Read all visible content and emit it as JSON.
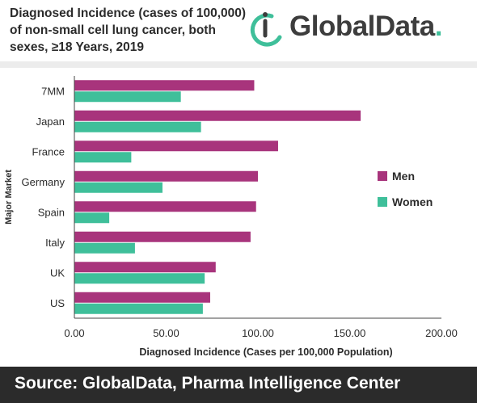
{
  "header": {
    "title_lines": [
      "Diagnosed Incidence (cases of 100,000)",
      "of non-small cell lung cancer, both",
      "sexes, ≥18 Years, 2019"
    ],
    "logo_text": "GlobalData",
    "logo_dot": "."
  },
  "footer": {
    "source_text": "Source: GlobalData, Pharma Intelligence Center"
  },
  "colors": {
    "men": "#a8347c",
    "women": "#3fbf9a",
    "axis": "#444444",
    "text": "#2b2b2b",
    "footer_bg": "#2b2b2b"
  },
  "chart_data": {
    "type": "bar",
    "orientation": "horizontal",
    "categories": [
      "7MM",
      "Japan",
      "France",
      "Germany",
      "Spain",
      "Italy",
      "UK",
      "US"
    ],
    "series": [
      {
        "name": "Men",
        "values": [
          98,
          156,
          111,
          100,
          99,
          96,
          77,
          74
        ]
      },
      {
        "name": "Women",
        "values": [
          58,
          69,
          31,
          48,
          19,
          33,
          71,
          70
        ]
      }
    ],
    "xlabel": "Diagnosed Incidence (Cases per 100,000 Population)",
    "ylabel": "Major Market",
    "xlim": [
      0,
      200
    ],
    "xticks": [
      "0.00",
      "50.00",
      "100.00",
      "150.00",
      "200.00"
    ],
    "grid": false,
    "legend_position": "right"
  }
}
